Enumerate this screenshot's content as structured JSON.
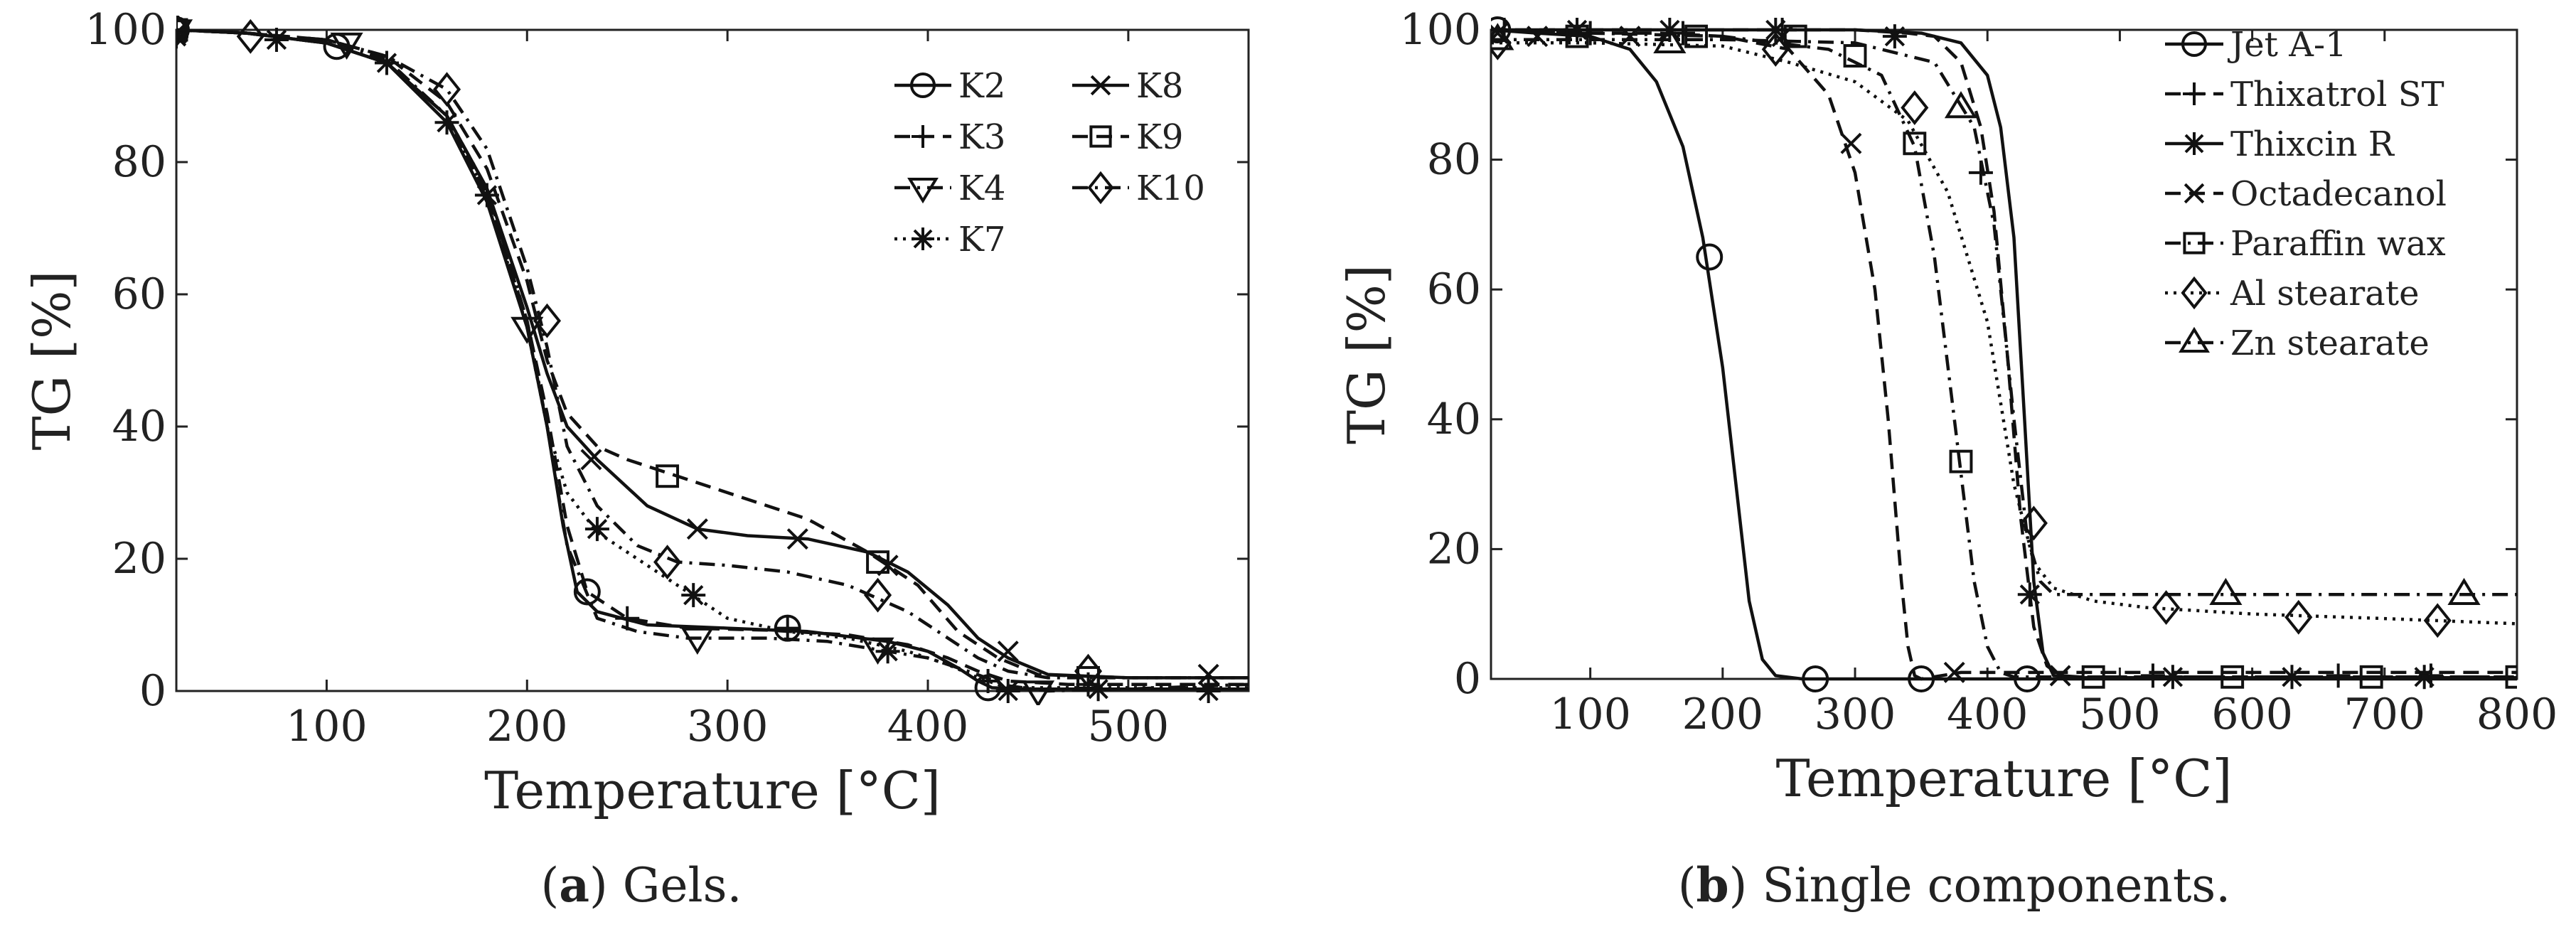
{
  "chart_data": [
    {
      "type": "line",
      "panel": "a",
      "caption_label": "a",
      "caption_text": ") Gels.",
      "xlabel": "Temperature [°C]",
      "ylabel": "TG [%]",
      "xlim": [
        25,
        560
      ],
      "ylim": [
        0,
        100
      ],
      "xticks": [
        100,
        200,
        300,
        400,
        500
      ],
      "yticks": [
        0,
        20,
        40,
        60,
        80,
        100
      ],
      "grid": false,
      "legend_position": "top-right",
      "series": [
        {
          "name": "K2",
          "dash": "solid",
          "marker": "circle",
          "x": [
            25,
            60,
            100,
            130,
            160,
            180,
            200,
            210,
            218,
            225,
            235,
            260,
            300,
            340,
            380,
            400,
            415,
            425,
            432,
            450,
            500,
            560
          ],
          "y": [
            100,
            99.5,
            98,
            95,
            86,
            74,
            55,
            40,
            25,
            15,
            12,
            10,
            9.5,
            9,
            7.5,
            6,
            3.5,
            1.5,
            0.5,
            0.3,
            0.3,
            0.3
          ],
          "markers": [
            [
              25,
              100
            ],
            [
              105,
              97.5
            ],
            [
              230,
              15
            ],
            [
              330,
              9.5
            ],
            [
              430,
              0.5
            ]
          ]
        },
        {
          "name": "K3",
          "dash": "dashed",
          "marker": "plus",
          "x": [
            25,
            60,
            100,
            130,
            160,
            180,
            200,
            210,
            220,
            230,
            250,
            280,
            320,
            360,
            390,
            410,
            425,
            440,
            470,
            520,
            560
          ],
          "y": [
            100,
            99.5,
            98,
            95,
            87,
            75,
            56,
            42,
            25,
            15,
            11,
            9.5,
            9.2,
            8.5,
            7,
            5,
            3,
            1.5,
            1,
            1,
            1
          ],
          "markers": [
            [
              25,
              99.5
            ],
            [
              250,
              11
            ],
            [
              330,
              9.5
            ],
            [
              430,
              1.5
            ],
            [
              480,
              1
            ]
          ]
        },
        {
          "name": "K4",
          "dash": "dashdot",
          "marker": "triangle-down",
          "x": [
            25,
            60,
            100,
            130,
            160,
            180,
            200,
            210,
            220,
            235,
            255,
            280,
            320,
            350,
            380,
            400,
            420,
            440,
            460,
            500,
            560
          ],
          "y": [
            100,
            99.5,
            98.5,
            95.5,
            87,
            76,
            56,
            40,
            22,
            11,
            9,
            8,
            8,
            7.5,
            6,
            5,
            3,
            0.8,
            0,
            0.3,
            1
          ],
          "markers": [
            [
              25,
              100
            ],
            [
              110,
              98
            ],
            [
              200,
              55
            ],
            [
              285,
              8
            ],
            [
              375,
              6.5
            ],
            [
              455,
              0
            ]
          ]
        },
        {
          "name": "K7",
          "dash": "dotted",
          "marker": "star",
          "x": [
            25,
            60,
            100,
            130,
            160,
            180,
            200,
            210,
            220,
            235,
            260,
            280,
            300,
            330,
            360,
            390,
            410,
            425,
            440,
            500,
            560
          ],
          "y": [
            100,
            99.5,
            98,
            95,
            87,
            75,
            55,
            40,
            30,
            24,
            19,
            15,
            11,
            9,
            8,
            6,
            4,
            2,
            0.5,
            0.5,
            0.5
          ],
          "markers": [
            [
              25,
              99
            ],
            [
              75,
              98.5
            ],
            [
              130,
              95
            ],
            [
              160,
              86
            ],
            [
              180,
              75
            ],
            [
              235,
              24.5
            ],
            [
              283,
              14.5
            ],
            [
              380,
              6
            ],
            [
              440,
              0
            ],
            [
              485,
              0.3
            ],
            [
              540,
              0
            ]
          ]
        },
        {
          "name": "K8",
          "dash": "solid",
          "marker": "x",
          "x": [
            25,
            60,
            100,
            130,
            160,
            180,
            200,
            210,
            220,
            235,
            260,
            285,
            310,
            340,
            370,
            390,
            410,
            425,
            440,
            460,
            500,
            560
          ],
          "y": [
            100,
            99.5,
            98,
            95,
            87,
            76,
            58,
            48,
            40,
            35,
            28,
            24.5,
            23.5,
            23,
            21,
            18,
            13,
            8,
            5,
            2.5,
            2,
            2
          ],
          "markers": [
            [
              25,
              99.5
            ],
            [
              232,
              35
            ],
            [
              285,
              24.5
            ],
            [
              335,
              23
            ],
            [
              380,
              19
            ],
            [
              440,
              6
            ],
            [
              540,
              2.5
            ]
          ]
        },
        {
          "name": "K9",
          "dash": "dashed",
          "marker": "square",
          "x": [
            25,
            60,
            100,
            130,
            160,
            180,
            200,
            210,
            220,
            235,
            250,
            270,
            300,
            340,
            370,
            395,
            415,
            435,
            455,
            500,
            560
          ],
          "y": [
            100,
            99.5,
            98.5,
            96,
            89,
            79,
            62,
            50,
            42,
            37,
            35,
            33,
            30,
            26,
            21,
            16,
            9,
            5,
            2.5,
            2,
            2
          ],
          "markers": [
            [
              25,
              100
            ],
            [
              270,
              32.5
            ],
            [
              375,
              19.5
            ],
            [
              480,
              2
            ]
          ]
        },
        {
          "name": "K10",
          "dash": "dashdot",
          "marker": "diamond",
          "x": [
            25,
            60,
            100,
            130,
            160,
            180,
            200,
            210,
            220,
            235,
            255,
            275,
            300,
            330,
            360,
            390,
            410,
            425,
            440,
            460,
            500,
            560
          ],
          "y": [
            100,
            99.5,
            98.5,
            96,
            91,
            82,
            64,
            52,
            37,
            28,
            22,
            19.5,
            19,
            18,
            16,
            12,
            8,
            5,
            3,
            2,
            2,
            2
          ],
          "markers": [
            [
              25,
              100
            ],
            [
              62,
              99
            ],
            [
              160,
              91
            ],
            [
              210,
              56
            ],
            [
              270,
              19.5
            ],
            [
              375,
              14.5
            ],
            [
              480,
              3
            ]
          ]
        }
      ]
    },
    {
      "type": "line",
      "panel": "b",
      "caption_label": "b",
      "caption_text": ") Single components.",
      "xlabel": "Temperature [°C]",
      "ylabel": "TG [%]",
      "xlim": [
        25,
        800
      ],
      "ylim": [
        0,
        100
      ],
      "xticks": [
        100,
        200,
        300,
        400,
        500,
        600,
        700,
        800
      ],
      "yticks": [
        0,
        20,
        40,
        60,
        80,
        100
      ],
      "grid": false,
      "legend_position": "top-right",
      "series": [
        {
          "name": "Jet A-1",
          "dash": "solid",
          "marker": "circle",
          "x": [
            25,
            60,
            100,
            130,
            150,
            170,
            185,
            200,
            210,
            220,
            230,
            240,
            260,
            400,
            800
          ],
          "y": [
            100,
            99.5,
            99,
            97,
            92,
            82,
            68,
            48,
            30,
            12,
            3,
            0.5,
            0,
            0,
            0
          ],
          "markers": [
            [
              30,
              100
            ],
            [
              190,
              65
            ],
            [
              270,
              0
            ],
            [
              350,
              0
            ],
            [
              430,
              0
            ]
          ]
        },
        {
          "name": "Thixatrol ST",
          "dash": "dashed",
          "marker": "plus",
          "x": [
            25,
            100,
            200,
            300,
            340,
            360,
            380,
            395,
            405,
            415,
            425,
            435,
            445,
            455,
            470,
            500,
            800
          ],
          "y": [
            100,
            100,
            100,
            100,
            99.5,
            99,
            95,
            85,
            72,
            50,
            25,
            8,
            2,
            0.5,
            0.3,
            0.3,
            0.3
          ],
          "markers": [
            [
              35,
              100
            ],
            [
              100,
              99.5
            ],
            [
              170,
              99.5
            ],
            [
              245,
              100
            ],
            [
              395,
              78
            ],
            [
              525,
              0.5
            ],
            [
              665,
              0.5
            ],
            [
              735,
              0.5
            ]
          ]
        },
        {
          "name": "Thixcin R",
          "dash": "solid",
          "marker": "star",
          "x": [
            25,
            100,
            200,
            300,
            350,
            380,
            400,
            410,
            420,
            428,
            435,
            442,
            450,
            470,
            500,
            800
          ],
          "y": [
            100,
            100,
            100,
            100,
            99.5,
            98,
            93,
            85,
            68,
            40,
            15,
            4,
            0.5,
            0.2,
            0.2,
            0.2
          ],
          "markers": [
            [
              90,
              100
            ],
            [
              160,
              100
            ],
            [
              240,
              100
            ],
            [
              330,
              99
            ],
            [
              432,
              13
            ],
            [
              540,
              0.3
            ],
            [
              630,
              0.3
            ],
            [
              730,
              0.3
            ]
          ]
        },
        {
          "name": "Octadecanol",
          "dash": "dashed",
          "marker": "x",
          "x": [
            25,
            100,
            150,
            200,
            250,
            280,
            300,
            315,
            325,
            335,
            340,
            345,
            350,
            380,
            800
          ],
          "y": [
            100,
            99.5,
            99.5,
            99,
            97,
            90,
            78,
            60,
            40,
            15,
            5,
            0.5,
            0,
            1,
            1
          ],
          "markers": [
            [
              30,
              99.5
            ],
            [
              60,
              99
            ],
            [
              130,
              99
            ],
            [
              245,
              99
            ],
            [
              297,
              82.5
            ],
            [
              375,
              1
            ],
            [
              455,
              0.5
            ]
          ]
        },
        {
          "name": "Paraffin wax",
          "dash": "dashdot",
          "marker": "square",
          "x": [
            25,
            100,
            200,
            280,
            320,
            345,
            360,
            375,
            390,
            400,
            410,
            420,
            440,
            500,
            800
          ],
          "y": [
            100,
            99.5,
            99,
            97,
            93,
            82,
            65,
            40,
            15,
            5,
            1,
            0.3,
            0.3,
            0.3,
            0.3
          ],
          "markers": [
            [
              90,
              99
            ],
            [
              180,
              99
            ],
            [
              255,
              99
            ],
            [
              300,
              96
            ],
            [
              345,
              82.5
            ],
            [
              380,
              33.5
            ],
            [
              480,
              0.3
            ],
            [
              585,
              0.3
            ],
            [
              690,
              0.3
            ],
            [
              800,
              0.3
            ]
          ]
        },
        {
          "name": "Al stearate",
          "dash": "dotted",
          "marker": "diamond",
          "x": [
            25,
            100,
            200,
            250,
            300,
            340,
            370,
            400,
            420,
            435,
            450,
            480,
            520,
            600,
            700,
            800
          ],
          "y": [
            98,
            98,
            97.5,
            95,
            92,
            86,
            75,
            55,
            30,
            18,
            14,
            12,
            11,
            10,
            9.3,
            8.5
          ],
          "markers": [
            [
              30,
              98
            ],
            [
              240,
              97
            ],
            [
              345,
              88
            ],
            [
              435,
              24
            ],
            [
              535,
              11
            ],
            [
              635,
              9.5
            ],
            [
              740,
              9
            ]
          ]
        },
        {
          "name": "Zn stearate",
          "dash": "dashdot",
          "marker": "triangle-up",
          "x": [
            25,
            100,
            200,
            300,
            360,
            390,
            405,
            420,
            430,
            440,
            450,
            470,
            500,
            800
          ],
          "y": [
            98.5,
            98.5,
            98.5,
            98,
            95,
            85,
            70,
            40,
            22,
            15,
            13,
            13,
            13,
            13
          ],
          "markers": [
            [
              30,
              98.5
            ],
            [
              160,
              98
            ],
            [
              380,
              88
            ],
            [
              580,
              13
            ],
            [
              760,
              13
            ]
          ]
        }
      ]
    }
  ]
}
